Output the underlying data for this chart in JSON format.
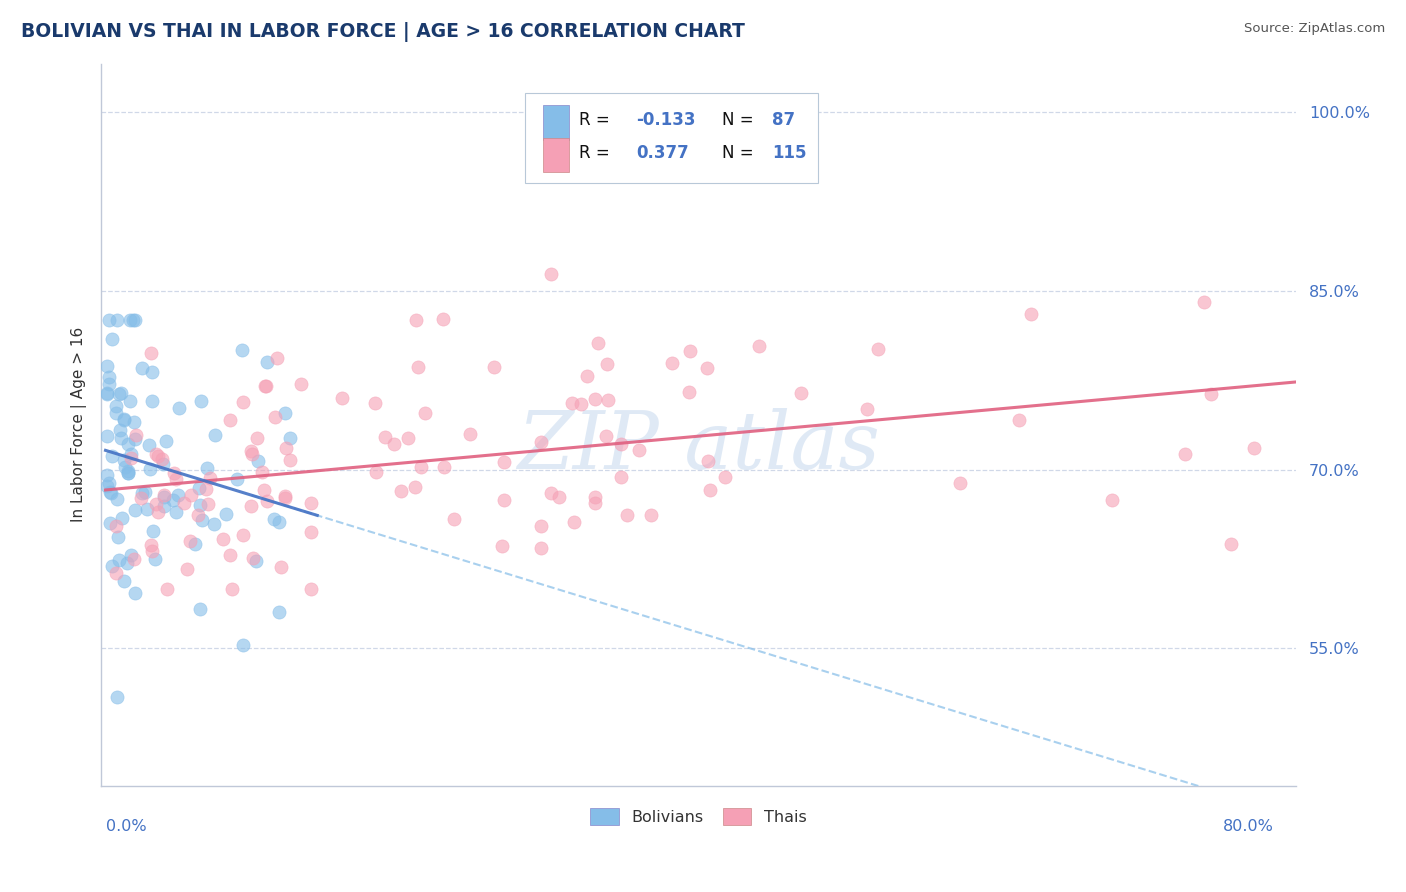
{
  "title": "BOLIVIAN VS THAI IN LABOR FORCE | AGE > 16 CORRELATION CHART",
  "source_text": "Source: ZipAtlas.com",
  "ylabel": "In Labor Force | Age > 16",
  "y_tick_positions": [
    0.55,
    0.7,
    0.85,
    1.0
  ],
  "y_tick_labels": [
    "55.0%",
    "70.0%",
    "85.0%",
    "100.0%"
  ],
  "y_min": 0.435,
  "y_max": 1.04,
  "x_min": -0.003,
  "x_max": 0.815,
  "bolivian_R": -0.133,
  "bolivian_N": 87,
  "thai_R": 0.377,
  "thai_N": 115,
  "bolivian_color": "#85bde8",
  "thai_color": "#f5a0b5",
  "bolivian_line_color": "#4472c4",
  "thai_line_color": "#e06080",
  "watermark_color": "#c5d8ee",
  "background_color": "#ffffff",
  "plot_bg_color": "#ffffff",
  "grid_color": "#d0d8e8"
}
